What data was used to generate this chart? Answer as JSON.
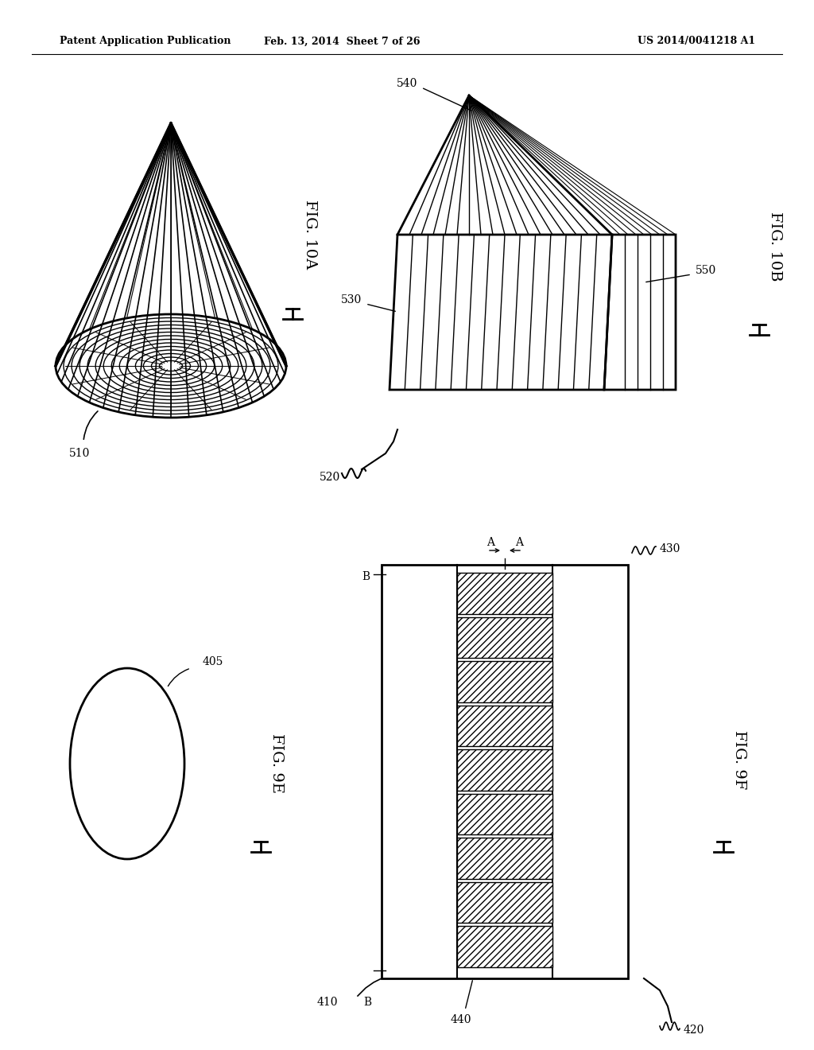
{
  "bg_color": "#ffffff",
  "header_left": "Patent Application Publication",
  "header_mid": "Feb. 13, 2014  Sheet 7 of 26",
  "header_right": "US 2014/0041218 A1",
  "fig10A_label": "FIG. 10A",
  "fig10B_label": "FIG. 10B",
  "fig9E_label": "FIG. 9E",
  "fig9F_label": "FIG. 9F",
  "ref_510": "510",
  "ref_520": "520",
  "ref_530": "530",
  "ref_540": "540",
  "ref_550": "550",
  "ref_405": "405",
  "ref_410": "410",
  "ref_420": "420",
  "ref_430": "430",
  "ref_440": "440"
}
